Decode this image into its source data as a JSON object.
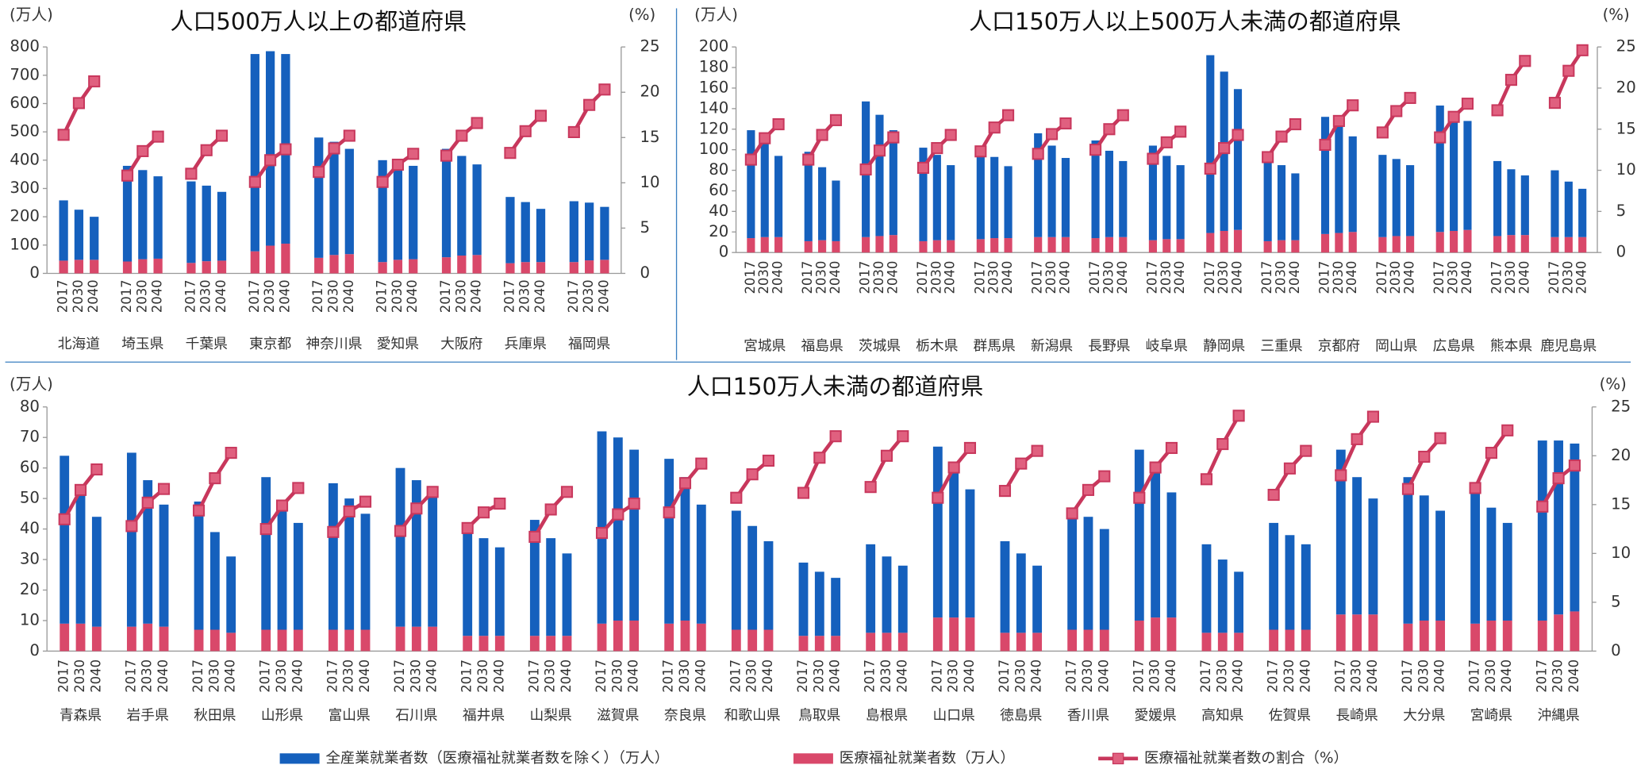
{
  "chart_data": [
    {
      "type": "bar",
      "title": "人口500万人以上の都道府県",
      "y_label": "(万人)",
      "y2_label": "(%)",
      "categories": [
        "北海道",
        "埼玉県",
        "千葉県",
        "東京都",
        "神奈川県",
        "愛知県",
        "大阪府",
        "兵庫県",
        "福岡県"
      ],
      "years": [
        "2017",
        "2030",
        "2040"
      ],
      "series": [
        {
          "color": "#1560bd",
          "values": [
            [
              213,
              177,
              152
            ],
            [
              338,
              315,
              291
            ],
            [
              288,
              267,
              243
            ],
            [
              697,
              687,
              670
            ],
            [
              425,
              400,
              372
            ],
            [
              360,
              350,
              330
            ],
            [
              383,
              352,
              320
            ],
            [
              234,
              212,
              188
            ],
            [
              215,
              204,
              187
            ]
          ]
        },
        {
          "color": "#d9486a",
          "values": [
            [
              45,
              48,
              48
            ],
            [
              42,
              50,
              52
            ],
            [
              37,
              43,
              45
            ],
            [
              78,
              98,
              105
            ],
            [
              55,
              65,
              68
            ],
            [
              40,
              48,
              50
            ],
            [
              57,
              63,
              65
            ],
            [
              36,
              40,
              40
            ],
            [
              40,
              46,
              48
            ]
          ]
        },
        {
          "type": "line",
          "axis": "y2",
          "color": "#c8375c",
          "values": [
            [
              15.3,
              18.8,
              21.2
            ],
            [
              10.8,
              13.5,
              15.1
            ],
            [
              11.0,
              13.6,
              15.2
            ],
            [
              10.1,
              12.5,
              13.7
            ],
            [
              11.2,
              13.8,
              15.2
            ],
            [
              10.1,
              12.0,
              13.2
            ],
            [
              13.0,
              15.2,
              16.6
            ],
            [
              13.3,
              15.7,
              17.4
            ],
            [
              15.6,
              18.6,
              20.3
            ]
          ]
        }
      ],
      "ylim": [
        0,
        800
      ],
      "yticks": [
        0,
        100,
        200,
        300,
        400,
        500,
        600,
        700,
        800
      ],
      "y2lim": [
        0,
        25
      ],
      "y2ticks": [
        0,
        5,
        10,
        15,
        20,
        25
      ]
    },
    {
      "type": "bar",
      "title": "人口150万人以上500万人未満の都道府県",
      "y_label": "(万人)",
      "y2_label": "(%)",
      "categories": [
        "宮城県",
        "福島県",
        "茨城県",
        "栃木県",
        "群馬県",
        "新潟県",
        "長野県",
        "岐阜県",
        "静岡県",
        "三重県",
        "京都府",
        "岡山県",
        "広島県",
        "熊本県",
        "鹿児島県"
      ],
      "years": [
        "2017",
        "2030",
        "2040"
      ],
      "series": [
        {
          "color": "#1560bd",
          "values": [
            [
              105,
              97,
              79
            ],
            [
              87,
              71,
              59
            ],
            [
              132,
              118,
              102
            ],
            [
              91,
              83,
              73
            ],
            [
              87,
              79,
              70
            ],
            [
              101,
              89,
              77
            ],
            [
              95,
              84,
              74
            ],
            [
              92,
              81,
              72
            ],
            [
              173,
              155,
              137
            ],
            [
              79,
              73,
              65
            ],
            [
              114,
              105,
              93
            ],
            [
              80,
              75,
              69
            ],
            [
              123,
              112,
              106
            ],
            [
              73,
              64,
              58
            ],
            [
              65,
              54,
              47
            ]
          ]
        },
        {
          "color": "#d9486a",
          "values": [
            [
              14,
              15,
              15
            ],
            [
              11,
              12,
              11
            ],
            [
              15,
              16,
              17
            ],
            [
              11,
              12,
              12
            ],
            [
              13,
              14,
              14
            ],
            [
              15,
              15,
              15
            ],
            [
              14,
              15,
              15
            ],
            [
              12,
              13,
              13
            ],
            [
              19,
              21,
              22
            ],
            [
              11,
              12,
              12
            ],
            [
              18,
              19,
              20
            ],
            [
              15,
              16,
              16
            ],
            [
              20,
              21,
              22
            ],
            [
              16,
              17,
              17
            ],
            [
              15,
              15,
              15
            ]
          ]
        },
        {
          "type": "line",
          "axis": "y2",
          "color": "#c8375c",
          "values": [
            [
              11.3,
              13.9,
              15.6
            ],
            [
              11.3,
              14.3,
              16.1
            ],
            [
              10.1,
              12.4,
              14.0
            ],
            [
              10.3,
              12.7,
              14.3
            ],
            [
              12.3,
              15.2,
              16.7
            ],
            [
              12.0,
              14.4,
              15.7
            ],
            [
              12.5,
              15.0,
              16.7
            ],
            [
              11.4,
              13.4,
              14.7
            ],
            [
              10.2,
              12.7,
              14.3
            ],
            [
              11.6,
              14.1,
              15.6
            ],
            [
              13.1,
              16.0,
              17.9
            ],
            [
              14.6,
              17.2,
              18.8
            ],
            [
              14.0,
              16.5,
              18.1
            ],
            [
              17.3,
              21.0,
              23.3
            ],
            [
              18.2,
              22.1,
              24.6
            ]
          ]
        }
      ],
      "ylim": [
        0,
        200
      ],
      "yticks": [
        0,
        20,
        40,
        60,
        80,
        100,
        120,
        140,
        160,
        180,
        200
      ],
      "y2lim": [
        0,
        25
      ],
      "y2ticks": [
        0,
        5,
        10,
        15,
        20,
        25
      ]
    },
    {
      "type": "bar",
      "title": "人口150万人未満の都道府県",
      "y_label": "(万人)",
      "y2_label": "(%)",
      "categories": [
        "青森県",
        "岩手県",
        "秋田県",
        "山形県",
        "富山県",
        "石川県",
        "福井県",
        "山梨県",
        "滋賀県",
        "奈良県",
        "和歌山県",
        "鳥取県",
        "島根県",
        "山口県",
        "徳島県",
        "香川県",
        "愛媛県",
        "高知県",
        "佐賀県",
        "長崎県",
        "大分県",
        "宮崎県",
        "沖縄県"
      ],
      "years": [
        "2017",
        "2030",
        "2040"
      ],
      "series": [
        {
          "name": "全産業就業者数（医療福祉就業者数を除く）（万人）",
          "color": "#1560bd",
          "values": [
            [
              55,
              43,
              36
            ],
            [
              57,
              47,
              40
            ],
            [
              42,
              32,
              25
            ],
            [
              50,
              41,
              35
            ],
            [
              48,
              43,
              38
            ],
            [
              52,
              48,
              44
            ],
            [
              35,
              32,
              29
            ],
            [
              38,
              32,
              27
            ],
            [
              63,
              60,
              56
            ],
            [
              54,
              47,
              39
            ],
            [
              39,
              34,
              29
            ],
            [
              24,
              21,
              19
            ],
            [
              29,
              25,
              22
            ],
            [
              56,
              48,
              42
            ],
            [
              30,
              26,
              22
            ],
            [
              40,
              37,
              33
            ],
            [
              56,
              49,
              41
            ],
            [
              29,
              24,
              20
            ],
            [
              35,
              31,
              28
            ],
            [
              54,
              45,
              38
            ],
            [
              48,
              41,
              36
            ],
            [
              45,
              37,
              32
            ],
            [
              59,
              57,
              55
            ]
          ]
        },
        {
          "name": "医療福祉就業者数（万人）",
          "color": "#d9486a",
          "values": [
            [
              9,
              9,
              8
            ],
            [
              8,
              9,
              8
            ],
            [
              7,
              7,
              6
            ],
            [
              7,
              7,
              7
            ],
            [
              7,
              7,
              7
            ],
            [
              8,
              8,
              8
            ],
            [
              5,
              5,
              5
            ],
            [
              5,
              5,
              5
            ],
            [
              9,
              10,
              10
            ],
            [
              9,
              10,
              9
            ],
            [
              7,
              7,
              7
            ],
            [
              5,
              5,
              5
            ],
            [
              6,
              6,
              6
            ],
            [
              11,
              11,
              11
            ],
            [
              6,
              6,
              6
            ],
            [
              7,
              7,
              7
            ],
            [
              10,
              11,
              11
            ],
            [
              6,
              6,
              6
            ],
            [
              7,
              7,
              7
            ],
            [
              12,
              12,
              12
            ],
            [
              9,
              10,
              10
            ],
            [
              9,
              10,
              10
            ],
            [
              10,
              12,
              13
            ]
          ]
        },
        {
          "name": "医療福祉就業者数の割合（%）",
          "type": "line",
          "axis": "y2",
          "color": "#c8375c",
          "values": [
            [
              13.5,
              16.5,
              18.6
            ],
            [
              12.8,
              15.2,
              16.6
            ],
            [
              14.4,
              17.7,
              20.3
            ],
            [
              12.5,
              14.9,
              16.7
            ],
            [
              12.2,
              14.3,
              15.3
            ],
            [
              12.3,
              14.6,
              16.3
            ],
            [
              12.6,
              14.2,
              15.1
            ],
            [
              11.7,
              14.5,
              16.3
            ],
            [
              12.1,
              14.0,
              15.1
            ],
            [
              14.2,
              17.2,
              19.2
            ],
            [
              15.7,
              18.1,
              19.5
            ],
            [
              16.2,
              19.8,
              22.0
            ],
            [
              16.8,
              20.0,
              22.0
            ],
            [
              15.7,
              18.8,
              20.8
            ],
            [
              16.4,
              19.2,
              20.5
            ],
            [
              14.1,
              16.5,
              17.9
            ],
            [
              15.7,
              18.8,
              20.8
            ],
            [
              17.6,
              21.2,
              24.1
            ],
            [
              16.0,
              18.7,
              20.5
            ],
            [
              18.0,
              21.7,
              24.0
            ],
            [
              16.6,
              19.9,
              21.8
            ],
            [
              16.7,
              20.3,
              22.6
            ],
            [
              14.8,
              17.7,
              19.0
            ]
          ]
        }
      ],
      "ylim": [
        0,
        80
      ],
      "yticks": [
        0,
        10,
        20,
        30,
        40,
        50,
        60,
        70,
        80
      ],
      "y2lim": [
        0,
        25
      ],
      "y2ticks": [
        0,
        5,
        10,
        15,
        20,
        25
      ]
    }
  ]
}
